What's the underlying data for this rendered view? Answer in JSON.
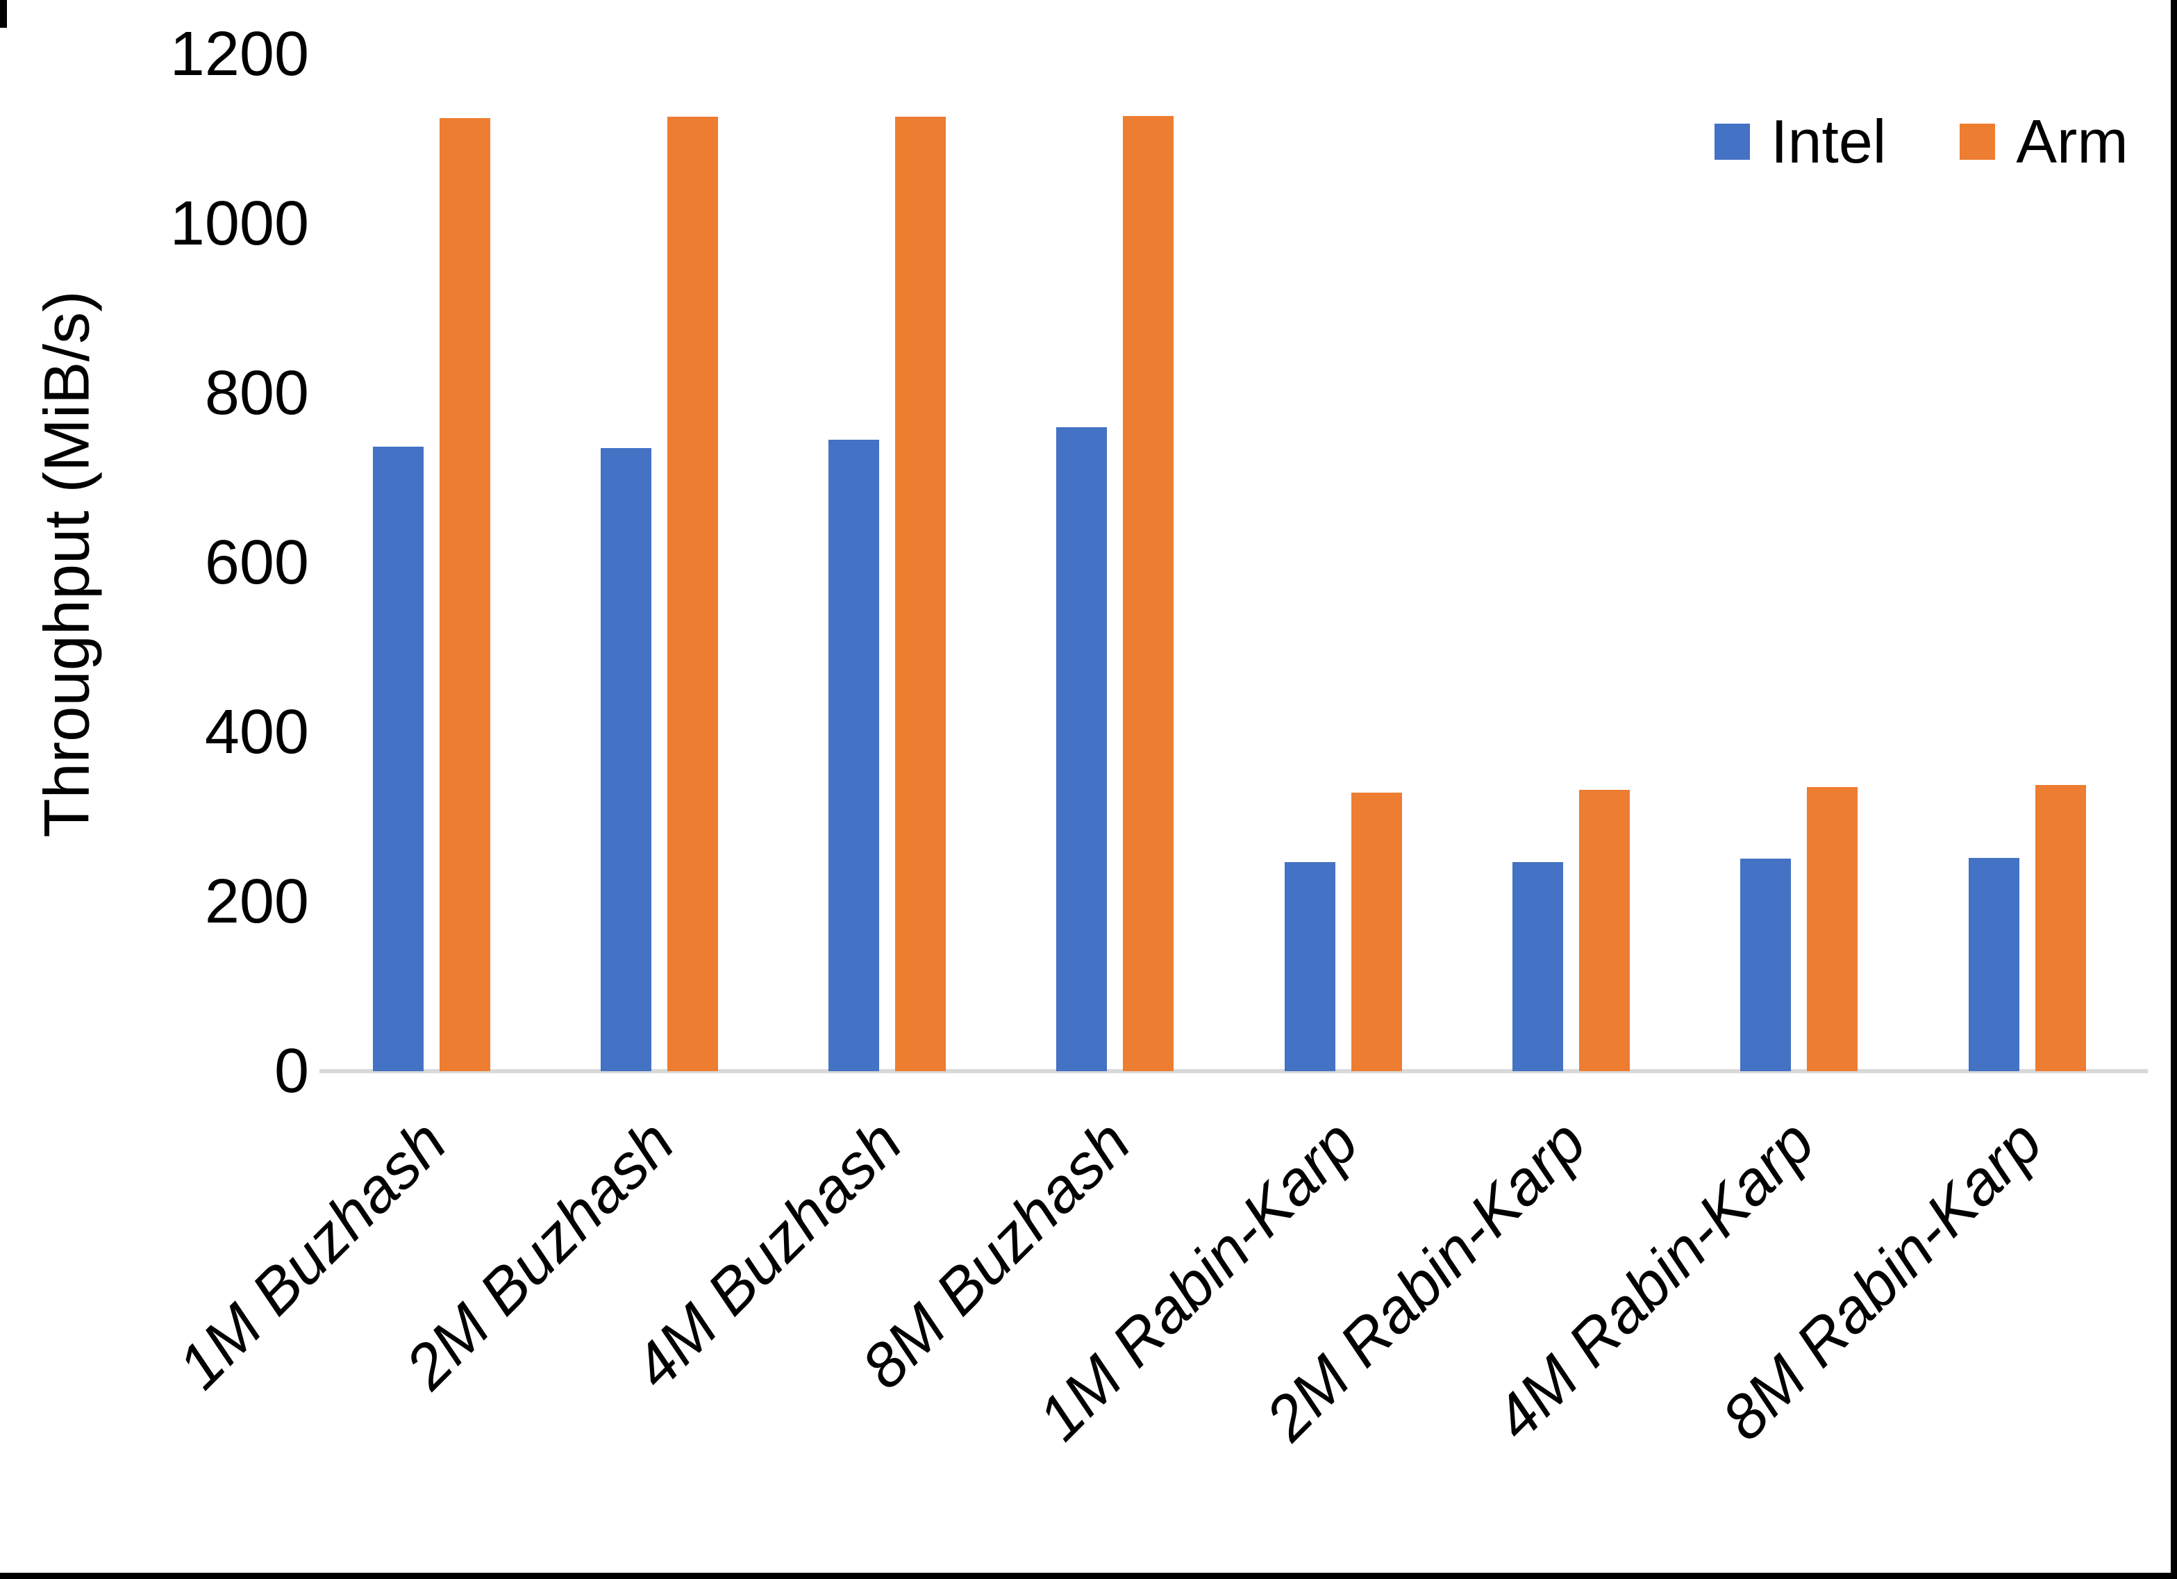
{
  "figure": {
    "background": "#FFFFFF",
    "frame_color": "#000000",
    "axis_line_color": "#D9D9D9",
    "text_color": "#000000"
  },
  "chart_data": {
    "type": "bar",
    "title": "",
    "xlabel": "",
    "ylabel": "Throughput (MiB/s)",
    "ylim": [
      0,
      1200
    ],
    "yticks": [
      0,
      200,
      400,
      600,
      800,
      1000,
      1200
    ],
    "grid": false,
    "legend_position": "top-right",
    "categories": [
      "1M Buzhash",
      "2M Buzhash",
      "4M Buzhash",
      "8M Buzhash",
      "1M Rabin-Karp",
      "2M Rabin-Karp",
      "4M Rabin-Karp",
      "8M Rabin-Karp"
    ],
    "series": [
      {
        "name": "Intel",
        "color": "#4472C4",
        "values": [
          737,
          735,
          745,
          760,
          247,
          247,
          251,
          252
        ]
      },
      {
        "name": "Arm",
        "color": "#ED7D31",
        "values": [
          1125,
          1126,
          1126,
          1127,
          329,
          332,
          335,
          338
        ]
      }
    ]
  }
}
